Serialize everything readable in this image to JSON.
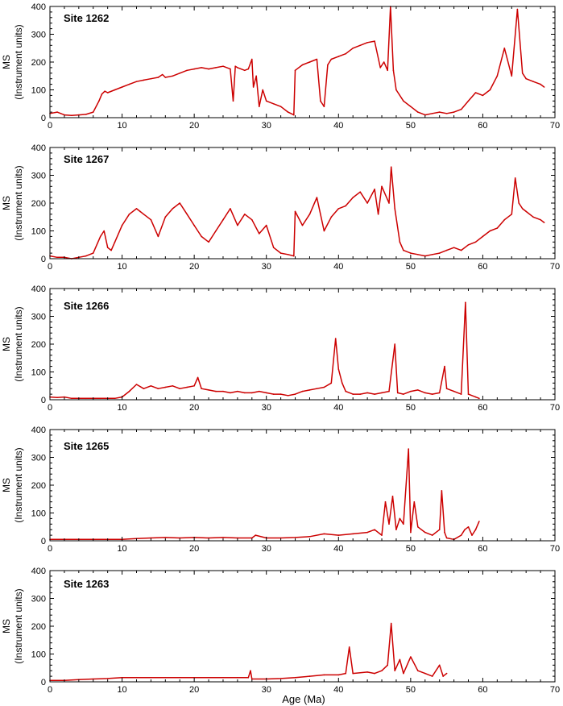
{
  "figure": {
    "xlabel": "Age (Ma)"
  },
  "chart_data": [
    {
      "type": "line",
      "title": "Site 1262",
      "xlabel": "",
      "ylabel": [
        "MS",
        "(Instrument units)"
      ],
      "xlim": [
        0,
        70
      ],
      "ylim": [
        0,
        400
      ],
      "xticks": [
        0,
        10,
        20,
        30,
        40,
        50,
        60,
        70
      ],
      "yticks": [
        0,
        100,
        200,
        300,
        400
      ],
      "color": "#cc0000",
      "series": [
        {
          "x": [
            0,
            1,
            2,
            3,
            4,
            5,
            6,
            6.8,
            7.2,
            7.6,
            8,
            9,
            10,
            11,
            12,
            13,
            14,
            15,
            15.6,
            16,
            17,
            18,
            19,
            20,
            21,
            22,
            23,
            24,
            25,
            25.4,
            25.7,
            26,
            27,
            27.5,
            28,
            28.2,
            28.6,
            29,
            29.5,
            30,
            31,
            32,
            33,
            33.8,
            34,
            35,
            36,
            37,
            37.5,
            38,
            38.5,
            39,
            40,
            41,
            42,
            43,
            44,
            45,
            45.8,
            46.3,
            46.8,
            47.2,
            47.6,
            48,
            49,
            50,
            51,
            52,
            53,
            54,
            55,
            56,
            57,
            58,
            59,
            60,
            61,
            62,
            63,
            64,
            64.8,
            65.5,
            66,
            67,
            68,
            68.5
          ],
          "values": [
            15,
            20,
            10,
            8,
            10,
            12,
            20,
            60,
            85,
            95,
            90,
            100,
            110,
            120,
            130,
            135,
            140,
            145,
            155,
            145,
            150,
            160,
            170,
            175,
            180,
            175,
            180,
            185,
            175,
            60,
            185,
            180,
            170,
            175,
            210,
            110,
            150,
            40,
            100,
            60,
            50,
            40,
            20,
            10,
            170,
            190,
            200,
            210,
            60,
            40,
            190,
            210,
            220,
            230,
            250,
            260,
            270,
            275,
            180,
            200,
            170,
            400,
            170,
            100,
            60,
            40,
            20,
            10,
            15,
            20,
            15,
            20,
            30,
            60,
            90,
            80,
            100,
            150,
            250,
            150,
            390,
            160,
            140,
            130,
            120,
            110
          ]
        }
      ]
    },
    {
      "type": "line",
      "title": "Site 1267",
      "xlabel": "",
      "ylabel": [
        "MS",
        "(Instrument units)"
      ],
      "xlim": [
        0,
        70
      ],
      "ylim": [
        0,
        400
      ],
      "xticks": [
        0,
        10,
        20,
        30,
        40,
        50,
        60,
        70
      ],
      "yticks": [
        0,
        100,
        200,
        300,
        400
      ],
      "color": "#cc0000",
      "series": [
        {
          "x": [
            0,
            1,
            2,
            3,
            4,
            5,
            6,
            7,
            7.5,
            8,
            8.5,
            9,
            10,
            11,
            12,
            12.5,
            13,
            14,
            15,
            16,
            17,
            18,
            19,
            20,
            21,
            22,
            23,
            24,
            25,
            26,
            27,
            28,
            29,
            30,
            31,
            32,
            33,
            33.8,
            34,
            35,
            36,
            37,
            38,
            39,
            40,
            41,
            42,
            43,
            44,
            45,
            45.5,
            46,
            47,
            47.3,
            47.8,
            48.5,
            49,
            50,
            51,
            52,
            53,
            54,
            55,
            56,
            57,
            58,
            59,
            60,
            61,
            62,
            63,
            64,
            64.5,
            65,
            65.5,
            66,
            67,
            68,
            68.5
          ],
          "values": [
            10,
            5,
            5,
            0,
            5,
            10,
            20,
            80,
            100,
            40,
            30,
            60,
            120,
            160,
            180,
            170,
            160,
            140,
            80,
            150,
            180,
            200,
            160,
            120,
            80,
            60,
            100,
            140,
            180,
            120,
            160,
            140,
            90,
            120,
            40,
            20,
            15,
            10,
            170,
            120,
            160,
            220,
            100,
            150,
            180,
            190,
            220,
            240,
            200,
            250,
            160,
            260,
            200,
            330,
            180,
            60,
            30,
            20,
            15,
            10,
            15,
            20,
            30,
            40,
            30,
            50,
            60,
            80,
            100,
            110,
            140,
            160,
            290,
            200,
            180,
            170,
            150,
            140,
            130
          ]
        }
      ]
    },
    {
      "type": "line",
      "title": "Site 1266",
      "xlabel": "",
      "ylabel": [
        "MS",
        "(Instrument units)"
      ],
      "xlim": [
        0,
        70
      ],
      "ylim": [
        0,
        400
      ],
      "xticks": [
        0,
        10,
        20,
        30,
        40,
        50,
        60,
        70
      ],
      "yticks": [
        0,
        100,
        200,
        300,
        400
      ],
      "color": "#cc0000",
      "series": [
        {
          "x": [
            0,
            1,
            2,
            3,
            4,
            5,
            6,
            7,
            8,
            9,
            10,
            11,
            12,
            13,
            14,
            15,
            16,
            17,
            18,
            19,
            20,
            20.5,
            21,
            22,
            23,
            24,
            25,
            26,
            27,
            28,
            29,
            30,
            31,
            32,
            33,
            34,
            35,
            36,
            37,
            38,
            39,
            39.6,
            40,
            40.5,
            41,
            42,
            43,
            44,
            45,
            46,
            47,
            47.8,
            48.2,
            49,
            50,
            51,
            52,
            53,
            54,
            54.7,
            55,
            56,
            57,
            57.6,
            58,
            59,
            59.5
          ],
          "values": [
            10,
            8,
            10,
            5,
            5,
            5,
            5,
            5,
            5,
            5,
            10,
            30,
            55,
            40,
            50,
            40,
            45,
            50,
            40,
            45,
            50,
            80,
            40,
            35,
            30,
            30,
            25,
            30,
            25,
            25,
            30,
            25,
            20,
            20,
            15,
            20,
            30,
            35,
            40,
            45,
            60,
            220,
            110,
            60,
            30,
            20,
            20,
            25,
            20,
            25,
            30,
            200,
            25,
            20,
            30,
            35,
            25,
            20,
            25,
            120,
            40,
            30,
            20,
            350,
            20,
            10,
            5
          ]
        }
      ]
    },
    {
      "type": "line",
      "title": "Site 1265",
      "xlabel": "",
      "ylabel": [
        "MS",
        "(Instrument units)"
      ],
      "xlim": [
        0,
        70
      ],
      "ylim": [
        0,
        400
      ],
      "xticks": [
        0,
        10,
        20,
        30,
        40,
        50,
        60,
        70
      ],
      "yticks": [
        0,
        100,
        200,
        300,
        400
      ],
      "color": "#cc0000",
      "series": [
        {
          "x": [
            0,
            2,
            4,
            6,
            8,
            10,
            12,
            14,
            16,
            18,
            20,
            22,
            24,
            26,
            28,
            28.5,
            30,
            32,
            34,
            36,
            38,
            40,
            42,
            44,
            45,
            46,
            46.5,
            47,
            47.5,
            48,
            48.5,
            49,
            49.7,
            50,
            50.5,
            51,
            52,
            53,
            54,
            54.3,
            54.7,
            55,
            56,
            57,
            57.5,
            58,
            58.5,
            59,
            59.5
          ],
          "values": [
            5,
            5,
            5,
            5,
            5,
            5,
            8,
            10,
            12,
            10,
            12,
            10,
            12,
            10,
            10,
            20,
            10,
            10,
            12,
            15,
            25,
            20,
            25,
            30,
            40,
            20,
            140,
            60,
            160,
            40,
            80,
            60,
            330,
            30,
            140,
            50,
            30,
            20,
            40,
            180,
            30,
            10,
            5,
            20,
            40,
            50,
            20,
            40,
            70
          ]
        }
      ]
    },
    {
      "type": "line",
      "title": "Site 1263",
      "xlabel": "Age (Ma)",
      "ylabel": [
        "MS",
        "(Instrument units)"
      ],
      "xlim": [
        0,
        70
      ],
      "ylim": [
        0,
        400
      ],
      "xticks": [
        0,
        10,
        20,
        30,
        40,
        50,
        60,
        70
      ],
      "yticks": [
        0,
        100,
        200,
        300,
        400
      ],
      "color": "#cc0000",
      "series": [
        {
          "x": [
            0,
            2,
            4,
            6,
            8,
            10,
            12,
            14,
            16,
            18,
            20,
            22,
            24,
            26,
            27.5,
            27.8,
            28,
            30,
            32,
            34,
            36,
            38,
            40,
            41,
            41.5,
            42,
            44,
            45,
            46,
            46.8,
            47.3,
            47.8,
            48.5,
            49,
            50,
            51,
            52,
            53,
            54,
            54.5,
            55
          ],
          "values": [
            5,
            5,
            8,
            10,
            12,
            15,
            15,
            15,
            15,
            15,
            15,
            15,
            15,
            15,
            15,
            40,
            10,
            10,
            12,
            15,
            20,
            25,
            25,
            30,
            125,
            30,
            35,
            30,
            40,
            60,
            210,
            40,
            80,
            30,
            90,
            40,
            30,
            20,
            60,
            20,
            30
          ]
        }
      ]
    }
  ]
}
